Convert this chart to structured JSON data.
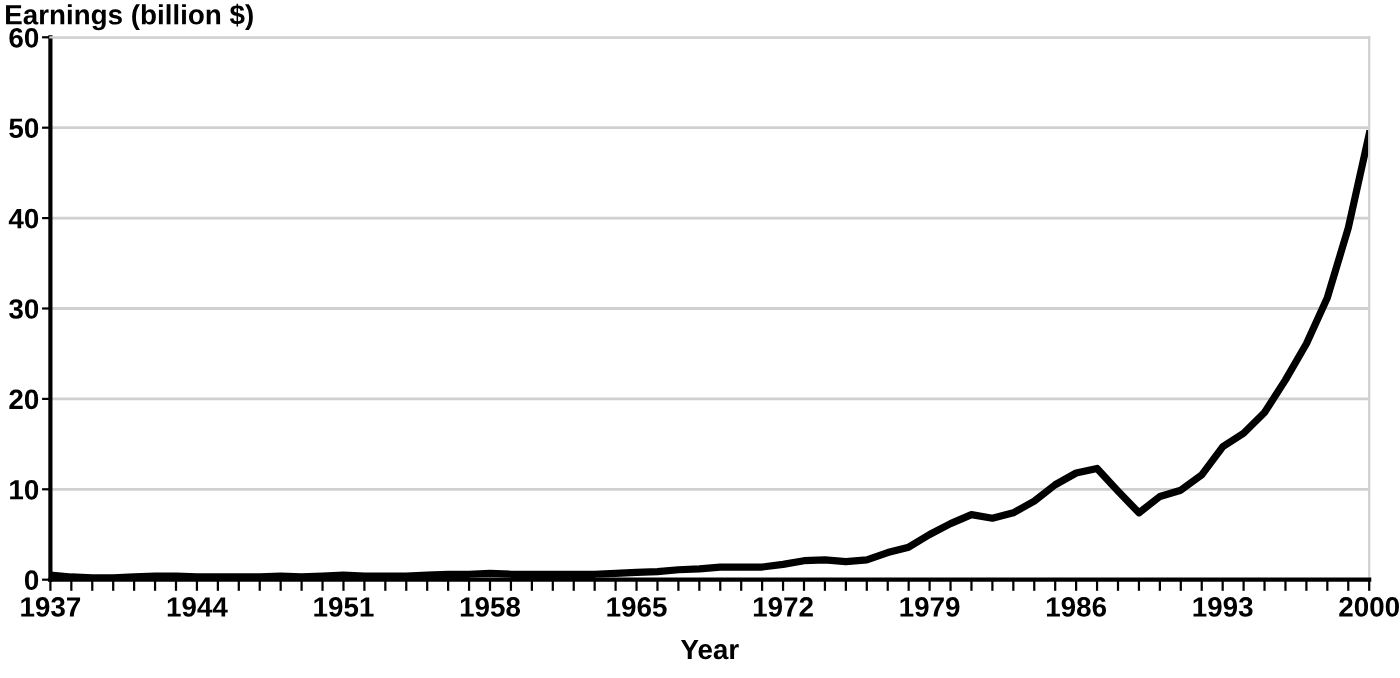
{
  "chart_data": {
    "type": "line",
    "ylabel": "Earnings (billion $)",
    "xlabel": "Year",
    "x": [
      1937,
      1938,
      1939,
      1940,
      1941,
      1942,
      1943,
      1944,
      1945,
      1946,
      1947,
      1948,
      1949,
      1950,
      1951,
      1952,
      1953,
      1954,
      1955,
      1956,
      1957,
      1958,
      1959,
      1960,
      1961,
      1962,
      1963,
      1964,
      1965,
      1966,
      1967,
      1968,
      1969,
      1970,
      1971,
      1972,
      1973,
      1974,
      1975,
      1976,
      1977,
      1978,
      1979,
      1980,
      1981,
      1982,
      1983,
      1984,
      1985,
      1986,
      1987,
      1988,
      1989,
      1990,
      1991,
      1992,
      1993,
      1994,
      1995,
      1996,
      1997,
      1998,
      1999,
      2000
    ],
    "series": [
      {
        "color": "#000000",
        "values": [
          0.5,
          0.3,
          0.2,
          0.2,
          0.3,
          0.4,
          0.4,
          0.3,
          0.3,
          0.3,
          0.3,
          0.4,
          0.3,
          0.4,
          0.5,
          0.4,
          0.4,
          0.4,
          0.5,
          0.6,
          0.6,
          0.7,
          0.6,
          0.6,
          0.6,
          0.6,
          0.6,
          0.7,
          0.8,
          0.9,
          1.1,
          1.2,
          1.4,
          1.4,
          1.4,
          1.7,
          2.1,
          2.2,
          2.0,
          2.2,
          3.0,
          3.6,
          5.0,
          6.2,
          7.2,
          6.8,
          7.4,
          8.7,
          10.5,
          11.8,
          12.3,
          9.8,
          7.4,
          9.2,
          9.9,
          11.6,
          14.7,
          16.2,
          18.5,
          22.1,
          26.1,
          31.2,
          38.9,
          49.3
        ]
      }
    ],
    "xlim": [
      1937,
      2000
    ],
    "xticks": [
      1937,
      {
        "value": 1938,
        "label": null
      },
      {
        "value": 1939,
        "label": null
      },
      {
        "value": 1940,
        "label": null
      },
      {
        "value": 1941,
        "label": null
      },
      {
        "value": 1942,
        "label": null
      },
      {
        "value": 1943,
        "label": null
      },
      1944,
      {
        "value": 1945,
        "label": null
      },
      {
        "value": 1946,
        "label": null
      },
      {
        "value": 1947,
        "label": null
      },
      {
        "value": 1948,
        "label": null
      },
      {
        "value": 1949,
        "label": null
      },
      {
        "value": 1950,
        "label": null
      },
      1951,
      {
        "value": 1952,
        "label": null
      },
      {
        "value": 1953,
        "label": null
      },
      {
        "value": 1954,
        "label": null
      },
      {
        "value": 1955,
        "label": null
      },
      {
        "value": 1956,
        "label": null
      },
      {
        "value": 1957,
        "label": null
      },
      1958,
      {
        "value": 1959,
        "label": null
      },
      {
        "value": 1960,
        "label": null
      },
      {
        "value": 1961,
        "label": null
      },
      {
        "value": 1962,
        "label": null
      },
      {
        "value": 1963,
        "label": null
      },
      {
        "value": 1964,
        "label": null
      },
      1965,
      {
        "value": 1966,
        "label": null
      },
      {
        "value": 1967,
        "label": null
      },
      {
        "value": 1968,
        "label": null
      },
      {
        "value": 1969,
        "label": null
      },
      {
        "value": 1970,
        "label": null
      },
      {
        "value": 1971,
        "label": null
      },
      1972,
      {
        "value": 1973,
        "label": null
      },
      {
        "value": 1974,
        "label": null
      },
      {
        "value": 1975,
        "label": null
      },
      {
        "value": 1976,
        "label": null
      },
      {
        "value": 1977,
        "label": null
      },
      {
        "value": 1978,
        "label": null
      },
      1979,
      {
        "value": 1980,
        "label": null
      },
      {
        "value": 1981,
        "label": null
      },
      {
        "value": 1982,
        "label": null
      },
      {
        "value": 1983,
        "label": null
      },
      {
        "value": 1984,
        "label": null
      },
      {
        "value": 1985,
        "label": null
      },
      1986,
      {
        "value": 1987,
        "label": null
      },
      {
        "value": 1988,
        "label": null
      },
      {
        "value": 1989,
        "label": null
      },
      {
        "value": 1990,
        "label": null
      },
      {
        "value": 1991,
        "label": null
      },
      {
        "value": 1992,
        "label": null
      },
      1993,
      {
        "value": 1994,
        "label": null
      },
      {
        "value": 1995,
        "label": null
      },
      {
        "value": 1996,
        "label": null
      },
      {
        "value": 1997,
        "label": null
      },
      {
        "value": 1998,
        "label": null
      },
      {
        "value": 1999,
        "label": null
      },
      2000
    ],
    "ylim": [
      0,
      60
    ],
    "yticks": [
      0,
      10,
      20,
      30,
      40,
      50,
      60
    ],
    "grid": "y",
    "line_style": "solid"
  }
}
